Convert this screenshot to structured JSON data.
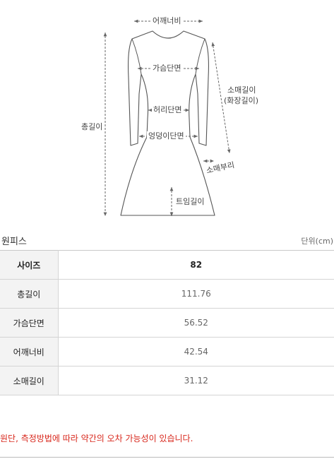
{
  "diagram": {
    "labels": {
      "shoulder": "어깨너비",
      "chest": "가슴단면",
      "waist": "허리단면",
      "hip": "엉덩이단면",
      "total_length": "총길이",
      "sleeve_length": "소매길이",
      "sleeve_length_alt": "(화장길이)",
      "sleeve_cuff": "소매부리",
      "slit_length": "트임길이"
    }
  },
  "section": {
    "title": "원피스",
    "unit": "단위(cm)"
  },
  "table": {
    "header": {
      "label": "사이즈",
      "value": "82"
    },
    "rows": [
      {
        "label": "총길이",
        "value": "111.76"
      },
      {
        "label": "가슴단면",
        "value": "56.52"
      },
      {
        "label": "어깨너비",
        "value": "42.54"
      },
      {
        "label": "소매길이",
        "value": "31.12"
      }
    ]
  },
  "notice": "원단, 측정방법에 따라 약간의 오차 가능성이 있습니다."
}
